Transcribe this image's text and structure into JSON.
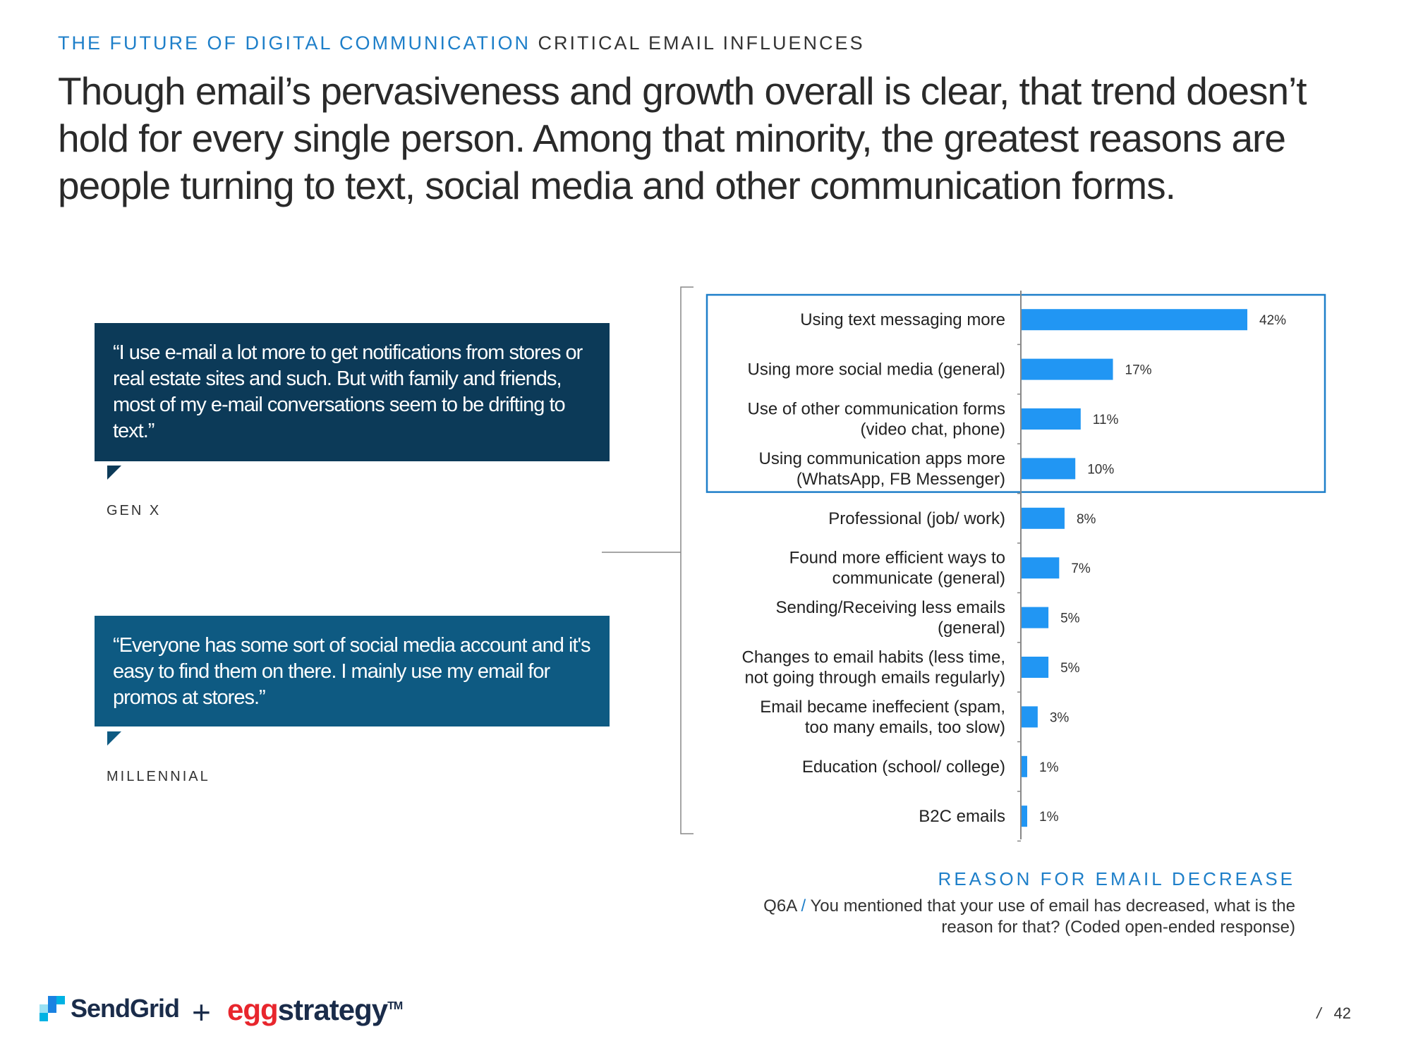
{
  "header": {
    "eyebrow_section": "THE FUTURE OF DIGITAL COMMUNICATION",
    "eyebrow_topic": "CRITICAL EMAIL INFLUENCES",
    "headline": "Though email’s pervasiveness and growth overall is clear, that trend doesn’t hold for every single person. Among that minority, the greatest reasons are people turning to text, social media and other communication forms."
  },
  "quotes": [
    {
      "text": "“I use e-mail a lot more to get notifications from stores or real estate sites and such.  But with family and friends, most of my e-mail conversations seem to be drifting to text.”",
      "persona": "GEN X"
    },
    {
      "text": "“Everyone has some sort of social media account and it's easy to find them on there. I mainly use my email for promos at stores.”",
      "persona": "MILLENNIAL"
    }
  ],
  "chart_data": {
    "type": "bar",
    "orientation": "horizontal",
    "title": "REASON FOR EMAIL DECREASE",
    "categories": [
      [
        "Using text messaging more"
      ],
      [
        "Using more social media (general)"
      ],
      [
        "Use of other communication forms",
        "(video chat, phone)"
      ],
      [
        "Using communication apps more",
        "(WhatsApp, FB Messenger)"
      ],
      [
        "Professional (job/ work)"
      ],
      [
        "Found more efficient ways to",
        "communicate (general)"
      ],
      [
        "Sending/Receiving less emails",
        "(general)"
      ],
      [
        "Changes to email habits (less time,",
        "not going through emails regularly)"
      ],
      [
        "Email became ineffecient (spam,",
        "too many emails, too slow)"
      ],
      [
        "Education (school/ college)"
      ],
      [
        "B2C emails"
      ]
    ],
    "values": [
      42,
      17,
      11,
      10,
      8,
      7,
      5,
      5,
      3,
      1,
      1
    ],
    "value_labels": [
      "42%",
      "17%",
      "11%",
      "10%",
      "8%",
      "7%",
      "5%",
      "5%",
      "3%",
      "1%",
      "1%"
    ],
    "highlighted_categories": 4,
    "xlim": [
      0,
      45
    ],
    "bar_color": "#2196f3",
    "highlight_color": "#1e7fc9"
  },
  "footer": {
    "question_id": "Q6A",
    "question_sep": "/",
    "question_text": "You mentioned that your use of email has decreased, what is the reason for that? (Coded open-ended response)"
  },
  "logos": {
    "sendgrid": "SendGrid",
    "plus": "+",
    "egg_part": "egg",
    "strategy_part": "strategy",
    "tm": "TM"
  },
  "page": {
    "sep": "/",
    "number": "42"
  }
}
